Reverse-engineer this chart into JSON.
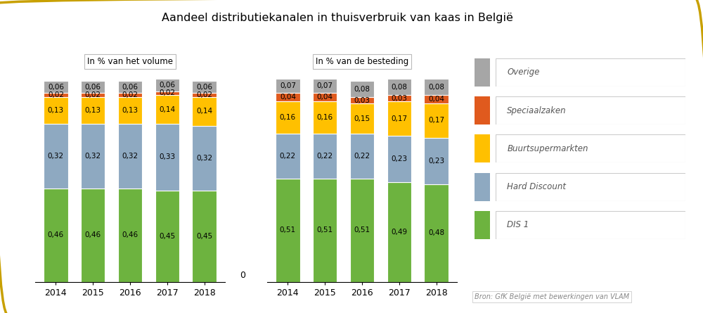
{
  "title": "Aandeel distributiekanalen in thuisverbruik van kaas in België",
  "subtitle_left": "In % van het volume",
  "subtitle_right": "In % van de besteding",
  "years": [
    "2014",
    "2015",
    "2016",
    "2017",
    "2018"
  ],
  "categories": [
    "DIS 1",
    "Hard Discount",
    "Buurtsupermarkten",
    "Speciaalzaken",
    "Overige"
  ],
  "colors": [
    "#6db33f",
    "#8ea9c1",
    "#ffc000",
    "#e05a1e",
    "#a6a6a6"
  ],
  "volume_data": {
    "DIS 1": [
      0.46,
      0.46,
      0.46,
      0.45,
      0.45
    ],
    "Hard Discount": [
      0.32,
      0.32,
      0.32,
      0.33,
      0.32
    ],
    "Buurtsupermarkten": [
      0.13,
      0.13,
      0.13,
      0.14,
      0.14
    ],
    "Speciaalzaken": [
      0.02,
      0.02,
      0.02,
      0.02,
      0.02
    ],
    "Overige": [
      0.06,
      0.06,
      0.06,
      0.06,
      0.06
    ]
  },
  "besteding_data": {
    "DIS 1": [
      0.51,
      0.51,
      0.51,
      0.49,
      0.48
    ],
    "Hard Discount": [
      0.22,
      0.22,
      0.22,
      0.23,
      0.23
    ],
    "Buurtsupermarkten": [
      0.16,
      0.16,
      0.15,
      0.17,
      0.17
    ],
    "Speciaalzaken": [
      0.04,
      0.04,
      0.03,
      0.03,
      0.04
    ],
    "Overige": [
      0.07,
      0.07,
      0.08,
      0.08,
      0.08
    ]
  },
  "source_text": "Bron: GfK België met bewerkingen van VLAM",
  "legend_labels": [
    "Overige",
    "Speciaalzaken",
    "Buurtsupermarkten",
    "Hard Discount",
    "DIS 1"
  ],
  "bar_width": 0.65,
  "background_color": "#ffffff",
  "outer_border_color": "#c8a000",
  "label_fontsize": 7.5,
  "title_fontsize": 11.5
}
